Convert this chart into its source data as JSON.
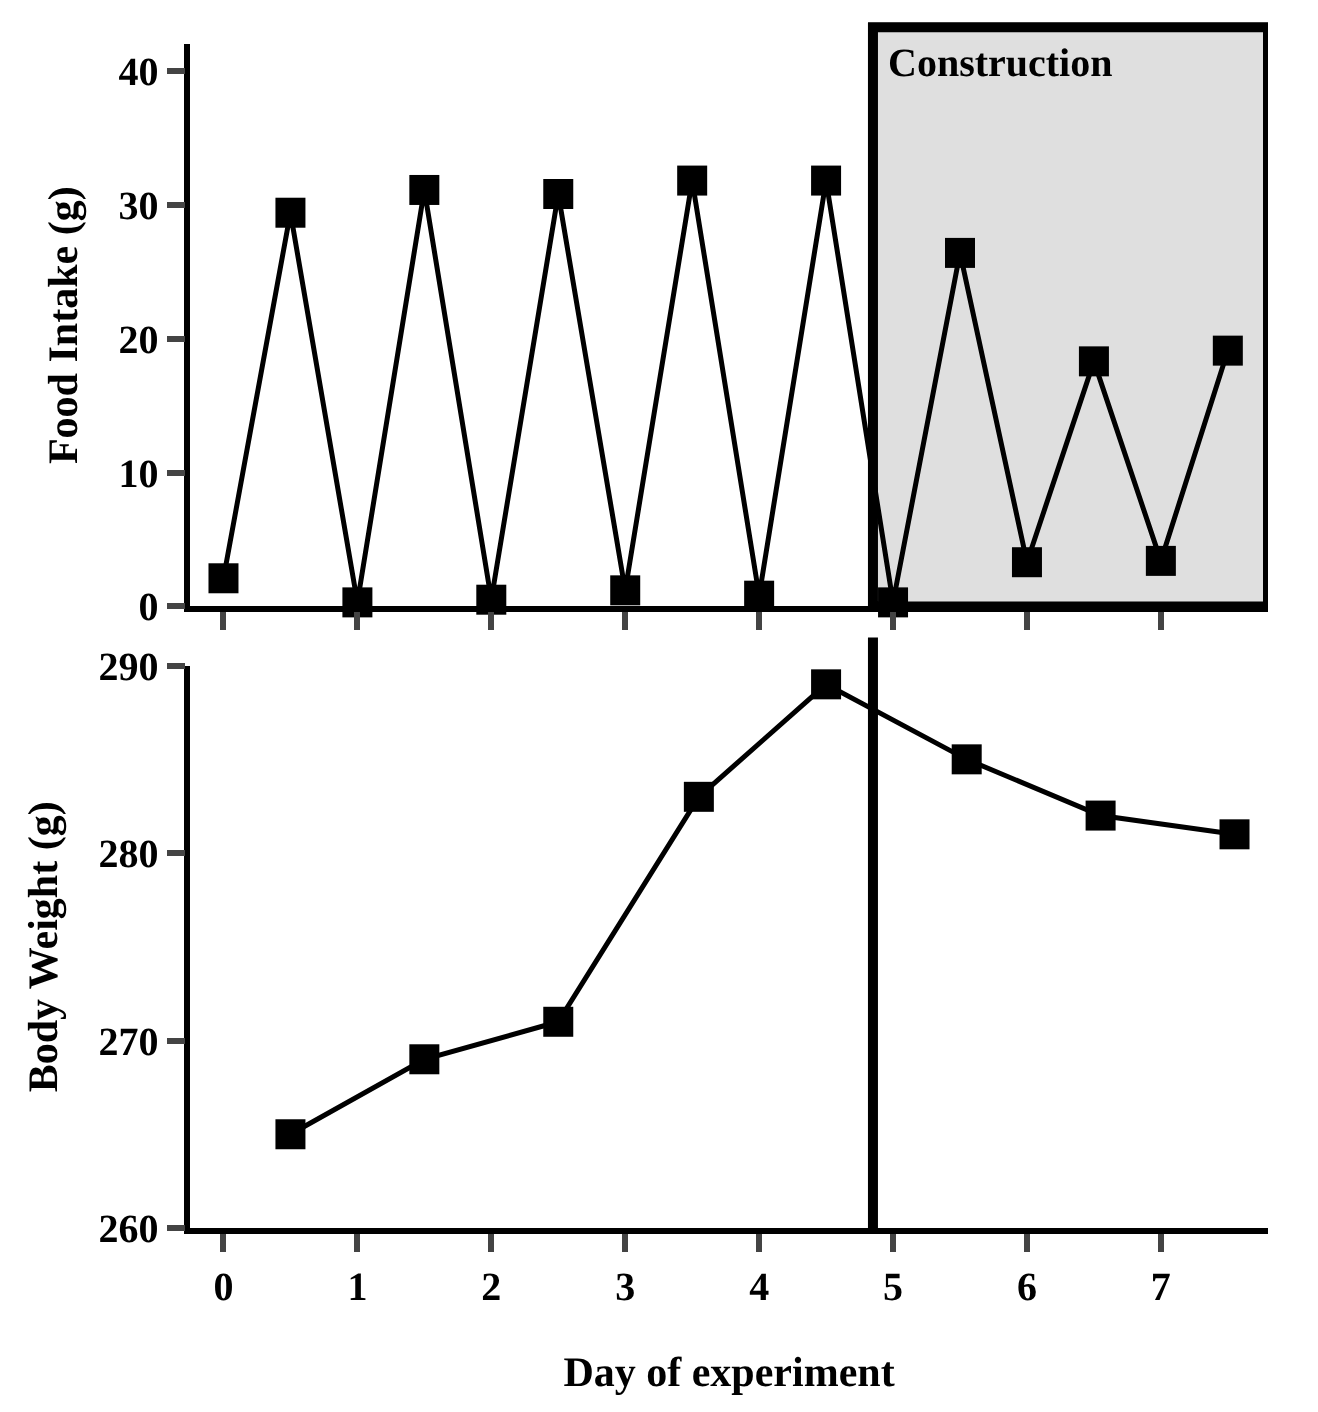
{
  "chart_data": [
    {
      "type": "line",
      "ylabel": "Food Intake (g)",
      "x": [
        0,
        0.5,
        1,
        1.5,
        2,
        2.5,
        3,
        3.5,
        4,
        4.5,
        5,
        5.5,
        6,
        6.5,
        7,
        7.5
      ],
      "series": [
        {
          "color": "#000000",
          "values": [
            2.1,
            29.4,
            0.3,
            31.1,
            0.5,
            30.8,
            1.2,
            31.8,
            0.8,
            31.8,
            0.3,
            26.4,
            3.3,
            18.3,
            3.4,
            19.1
          ]
        }
      ],
      "xlim": [
        -0.25,
        7.8
      ],
      "xticks": [
        {
          "value": 0,
          "label": null
        },
        {
          "value": 1,
          "label": null
        },
        {
          "value": 2,
          "label": null
        },
        {
          "value": 3,
          "label": null
        },
        {
          "value": 4,
          "label": null
        },
        {
          "value": 5,
          "label": null
        },
        {
          "value": 6,
          "label": null
        },
        {
          "value": 7,
          "label": null
        }
      ],
      "ylim": [
        0,
        42
      ],
      "yticks": [
        0,
        10,
        20,
        30,
        40
      ],
      "tick_labels": "y",
      "bands": [
        {
          "axis": "x",
          "from": 4.85,
          "to": 7.8,
          "label": "Construction",
          "color": "#000000"
        }
      ],
      "marker": "square",
      "line_style": "solid"
    },
    {
      "type": "line",
      "ylabel": "Body Weight (g)",
      "xlabel": "Day of experiment",
      "x": [
        0.5,
        1.5,
        2.5,
        3.55,
        4.5,
        5.55,
        6.55,
        7.55
      ],
      "series": [
        {
          "color": "#000000",
          "values": [
            265,
            269,
            271,
            283,
            289,
            285,
            282,
            281
          ]
        }
      ],
      "xlim": [
        -0.25,
        7.8
      ],
      "xticks": [
        0,
        1,
        2,
        3,
        4,
        5,
        6,
        7
      ],
      "ylim": [
        260,
        290
      ],
      "yticks": [
        260,
        270,
        280,
        290
      ],
      "ref_lines": [
        {
          "axis": "x",
          "value": 4.85,
          "color": "#000000"
        }
      ],
      "marker": "square",
      "line_style": "solid"
    }
  ]
}
